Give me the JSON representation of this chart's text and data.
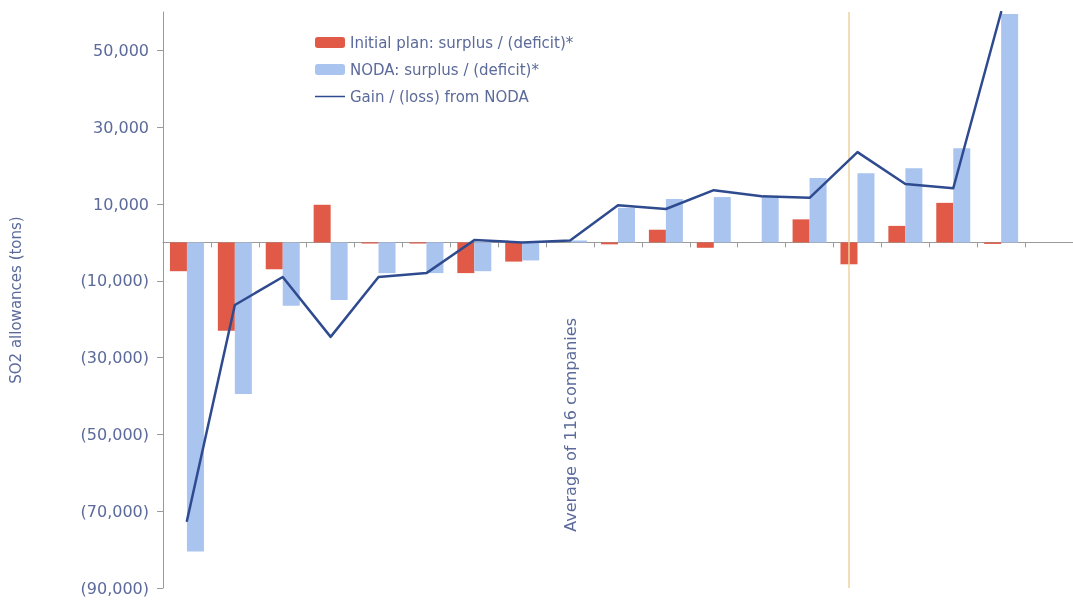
{
  "chart_data": {
    "type": "bar",
    "ylabel": "SO2 allowances (tons)",
    "categories": [
      null,
      null,
      null,
      null,
      null,
      null,
      null,
      null,
      null,
      null,
      null,
      null,
      null,
      null,
      null,
      null,
      null,
      null,
      null
    ],
    "series": [
      {
        "name": "Initial plan: surplus / (deficit)*",
        "color": "#e05a47",
        "values": [
          -7500,
          -23000,
          -7000,
          9800,
          -300,
          -300,
          -8000,
          -5000,
          null,
          -500,
          3300,
          -1400,
          null,
          6000,
          -5700,
          4300,
          10300,
          -400,
          null
        ]
      },
      {
        "name": "NODA: surplus / (deficit)*",
        "color": "#a9c4ef",
        "values": [
          -80500,
          -39500,
          -16500,
          -15000,
          -8000,
          -8000,
          -7500,
          -4700,
          500,
          9000,
          11300,
          11800,
          11800,
          16800,
          18000,
          19300,
          24500,
          59500,
          null
        ]
      },
      {
        "name": "Gain / (loss) from NODA",
        "type": "line",
        "color": "#2f4b8f",
        "values": [
          -72500,
          -16300,
          -9000,
          -24600,
          -9000,
          -8000,
          600,
          0,
          500,
          9700,
          8700,
          13600,
          12000,
          11600,
          23500,
          15200,
          14100,
          60000,
          null
        ]
      }
    ],
    "ylim": [
      -90000,
      60000
    ],
    "yticks": [
      {
        "value": -90000,
        "label": "(90,000)"
      },
      {
        "value": -70000,
        "label": "(70,000)"
      },
      {
        "value": -50000,
        "label": "(50,000)"
      },
      {
        "value": -30000,
        "label": "(30,000)"
      },
      {
        "value": -10000,
        "label": "(10,000)"
      },
      {
        "value": 10000,
        "label": "10,000"
      },
      {
        "value": 30000,
        "label": "30,000"
      },
      {
        "value": 50000,
        "label": "50,000"
      }
    ],
    "annotations": [
      "Average of 116 companies"
    ],
    "legend": "top",
    "grid": false,
    "marker": "none",
    "line_style": "solid"
  }
}
